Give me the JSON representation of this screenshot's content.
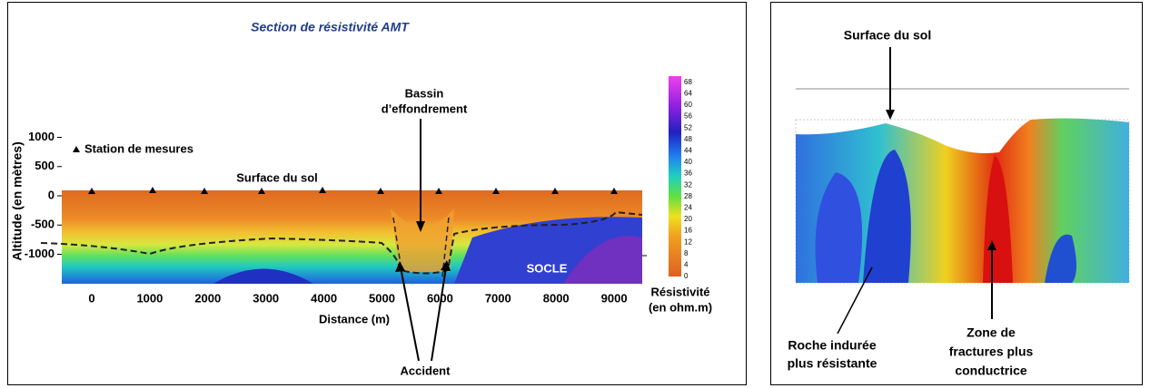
{
  "left": {
    "title": "Section de résistivité AMT",
    "y_label": "Altitude (en mètres)",
    "x_label": "Distance (m)",
    "x_ticks": [
      0,
      1000,
      2000,
      3000,
      4000,
      5000,
      6000,
      7000,
      8000,
      9000
    ],
    "y_ticks": [
      1000,
      500,
      0,
      -500,
      -1000
    ],
    "legend": "Station de mesures",
    "surface": "Surface du sol",
    "bassin": [
      "Bassin",
      "d’effondrement"
    ],
    "socle": "SOCLE",
    "accident": "Accident",
    "colorbar_ticks": [
      68,
      64,
      60,
      56,
      52,
      48,
      44,
      40,
      36,
      32,
      28,
      24,
      20,
      16,
      12,
      8,
      4,
      0
    ],
    "colorbar_title": [
      "Résistivité",
      "(en ohm.m)"
    ]
  },
  "right": {
    "surface": "Surface du sol",
    "roche": [
      "Roche indurée",
      "plus résistante"
    ],
    "zone": [
      "Zone de",
      "fractures plus",
      "conductrice"
    ]
  }
}
